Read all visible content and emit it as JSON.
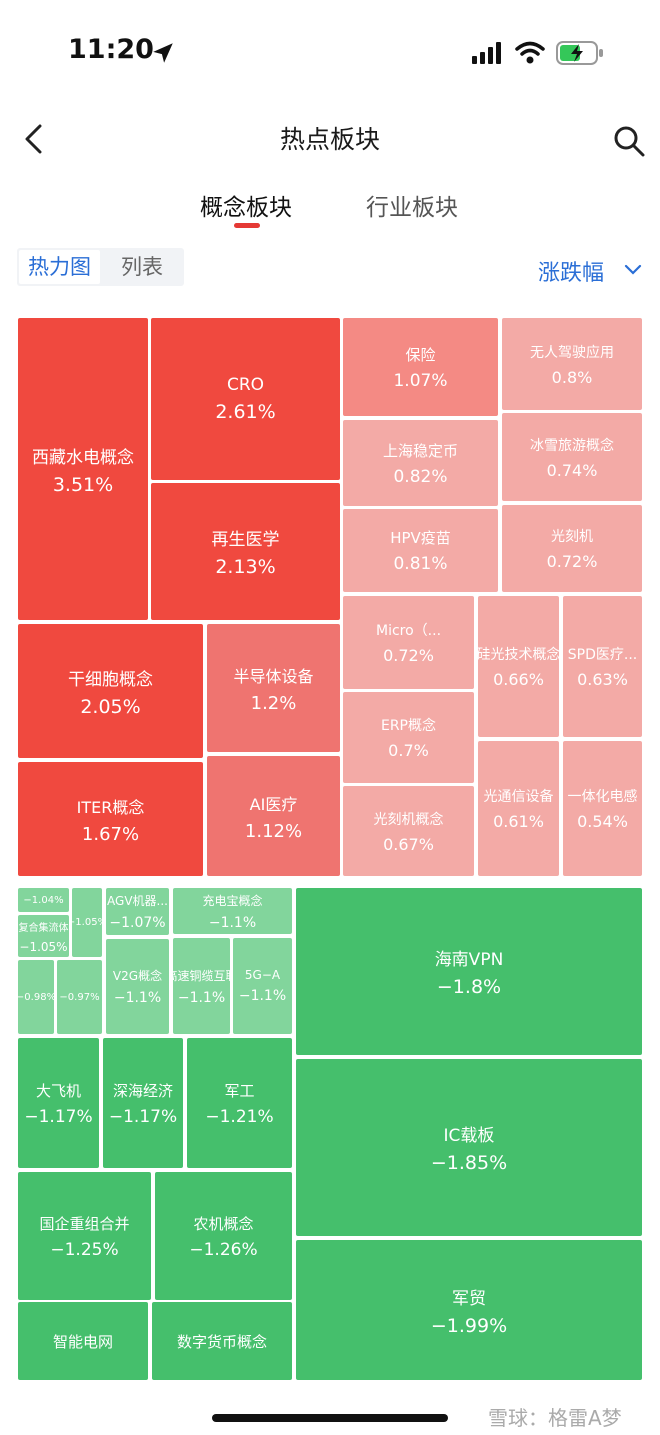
{
  "status_bar": {
    "time": "11:20"
  },
  "nav": {
    "title": "热点板块"
  },
  "tabs": [
    {
      "label": "概念板块",
      "active": true
    },
    {
      "label": "行业板块",
      "active": false
    }
  ],
  "view_toggle": {
    "options": [
      "热力图",
      "列表"
    ],
    "selected": "热力图"
  },
  "sort": {
    "label": "涨跌幅"
  },
  "treemap": [
    {
      "name": "西藏水电概念",
      "pct": "3.51%"
    },
    {
      "name": "CRO",
      "pct": "2.61%"
    },
    {
      "name": "再生医学",
      "pct": "2.13%"
    },
    {
      "name": "干细胞概念",
      "pct": "2.05%"
    },
    {
      "name": "半导体设备",
      "pct": "1.2%"
    },
    {
      "name": "ITER概念",
      "pct": "1.67%"
    },
    {
      "name": "AI医疗",
      "pct": "1.12%"
    },
    {
      "name": "保险",
      "pct": "1.07%"
    },
    {
      "name": "无人驾驶应用",
      "pct": "0.8%"
    },
    {
      "name": "上海稳定币",
      "pct": "0.82%"
    },
    {
      "name": "冰雪旅游概念",
      "pct": "0.74%"
    },
    {
      "name": "HPV疫苗",
      "pct": "0.81%"
    },
    {
      "name": "光刻机",
      "pct": "0.72%"
    },
    {
      "name": "Micro（...",
      "pct": "0.72%"
    },
    {
      "name": "硅光技术概念",
      "pct": "0.66%"
    },
    {
      "name": "SPD医疗...",
      "pct": "0.63%"
    },
    {
      "name": "ERP概念",
      "pct": "0.7%"
    },
    {
      "name": "光刻机概念",
      "pct": "0.67%"
    },
    {
      "name": "光通信设备",
      "pct": "0.61%"
    },
    {
      "name": "一体化电感",
      "pct": "0.54%"
    },
    {
      "name": "",
      "pct": "−1.04%"
    },
    {
      "name": "复合集流体",
      "pct": "−1.05%"
    },
    {
      "name": "",
      "pct": "−1.05%"
    },
    {
      "name": "AGV机器...",
      "pct": "−1.07%"
    },
    {
      "name": "充电宝概念",
      "pct": "−1.1%"
    },
    {
      "name": "",
      "pct": "−0.98%"
    },
    {
      "name": "",
      "pct": "−0.97%"
    },
    {
      "name": "V2G概念",
      "pct": "−1.1%"
    },
    {
      "name": "高速铜缆互联",
      "pct": "−1.1%"
    },
    {
      "name": "5G−A",
      "pct": "−1.1%"
    },
    {
      "name": "海南VPN",
      "pct": "−1.8%"
    },
    {
      "name": "大飞机",
      "pct": "−1.17%"
    },
    {
      "name": "深海经济",
      "pct": "−1.17%"
    },
    {
      "name": "军工",
      "pct": "−1.21%"
    },
    {
      "name": "IC载板",
      "pct": "−1.85%"
    },
    {
      "name": "国企重组合并",
      "pct": "−1.25%"
    },
    {
      "name": "农机概念",
      "pct": "−1.26%"
    },
    {
      "name": "军贸",
      "pct": "−1.99%"
    },
    {
      "name": "智能电网",
      "pct": ""
    },
    {
      "name": "数字货币概念",
      "pct": ""
    }
  ],
  "watermark": "雪球：格雷A梦"
}
